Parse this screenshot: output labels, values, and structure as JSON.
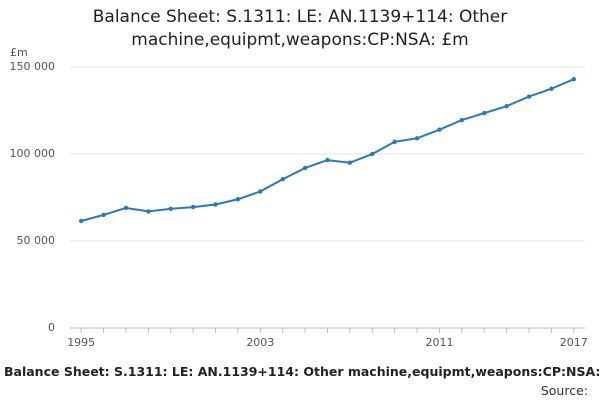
{
  "chart_data": {
    "type": "line",
    "title": "Balance Sheet: S.1311: LE: AN.1139+114: Other machine,equipmt,weapons:CP:NSA: £m",
    "y_label": "£m",
    "x": [
      1995,
      1996,
      1997,
      1998,
      1999,
      2000,
      2001,
      2002,
      2003,
      2004,
      2005,
      2006,
      2007,
      2008,
      2009,
      2010,
      2011,
      2012,
      2013,
      2014,
      2015,
      2016,
      2017
    ],
    "series": [
      {
        "name": "Balance Sheet: S.1311: LE: AN.1139+114: Other machine,equipmt,weapons:CP:NSA: £m",
        "color": "#2a7ab9",
        "values": [
          61500,
          65000,
          69000,
          67000,
          68500,
          69500,
          71000,
          74000,
          78500,
          85500,
          92000,
          96500,
          95000,
          100000,
          107000,
          109000,
          114000,
          119500,
          123500,
          127500,
          133000,
          137500,
          143000
        ]
      }
    ],
    "xlim": [
      1994.5,
      2017.5
    ],
    "xticks": [
      1995,
      2003,
      2011,
      2017
    ],
    "ylim": [
      0,
      150000
    ],
    "yticks": [
      0,
      {
        "value": 50000,
        "label": "50 000"
      },
      {
        "value": 100000,
        "label": "100 000"
      },
      {
        "value": 150000,
        "label": "150 000"
      }
    ],
    "grid": true,
    "source": "Source:"
  }
}
